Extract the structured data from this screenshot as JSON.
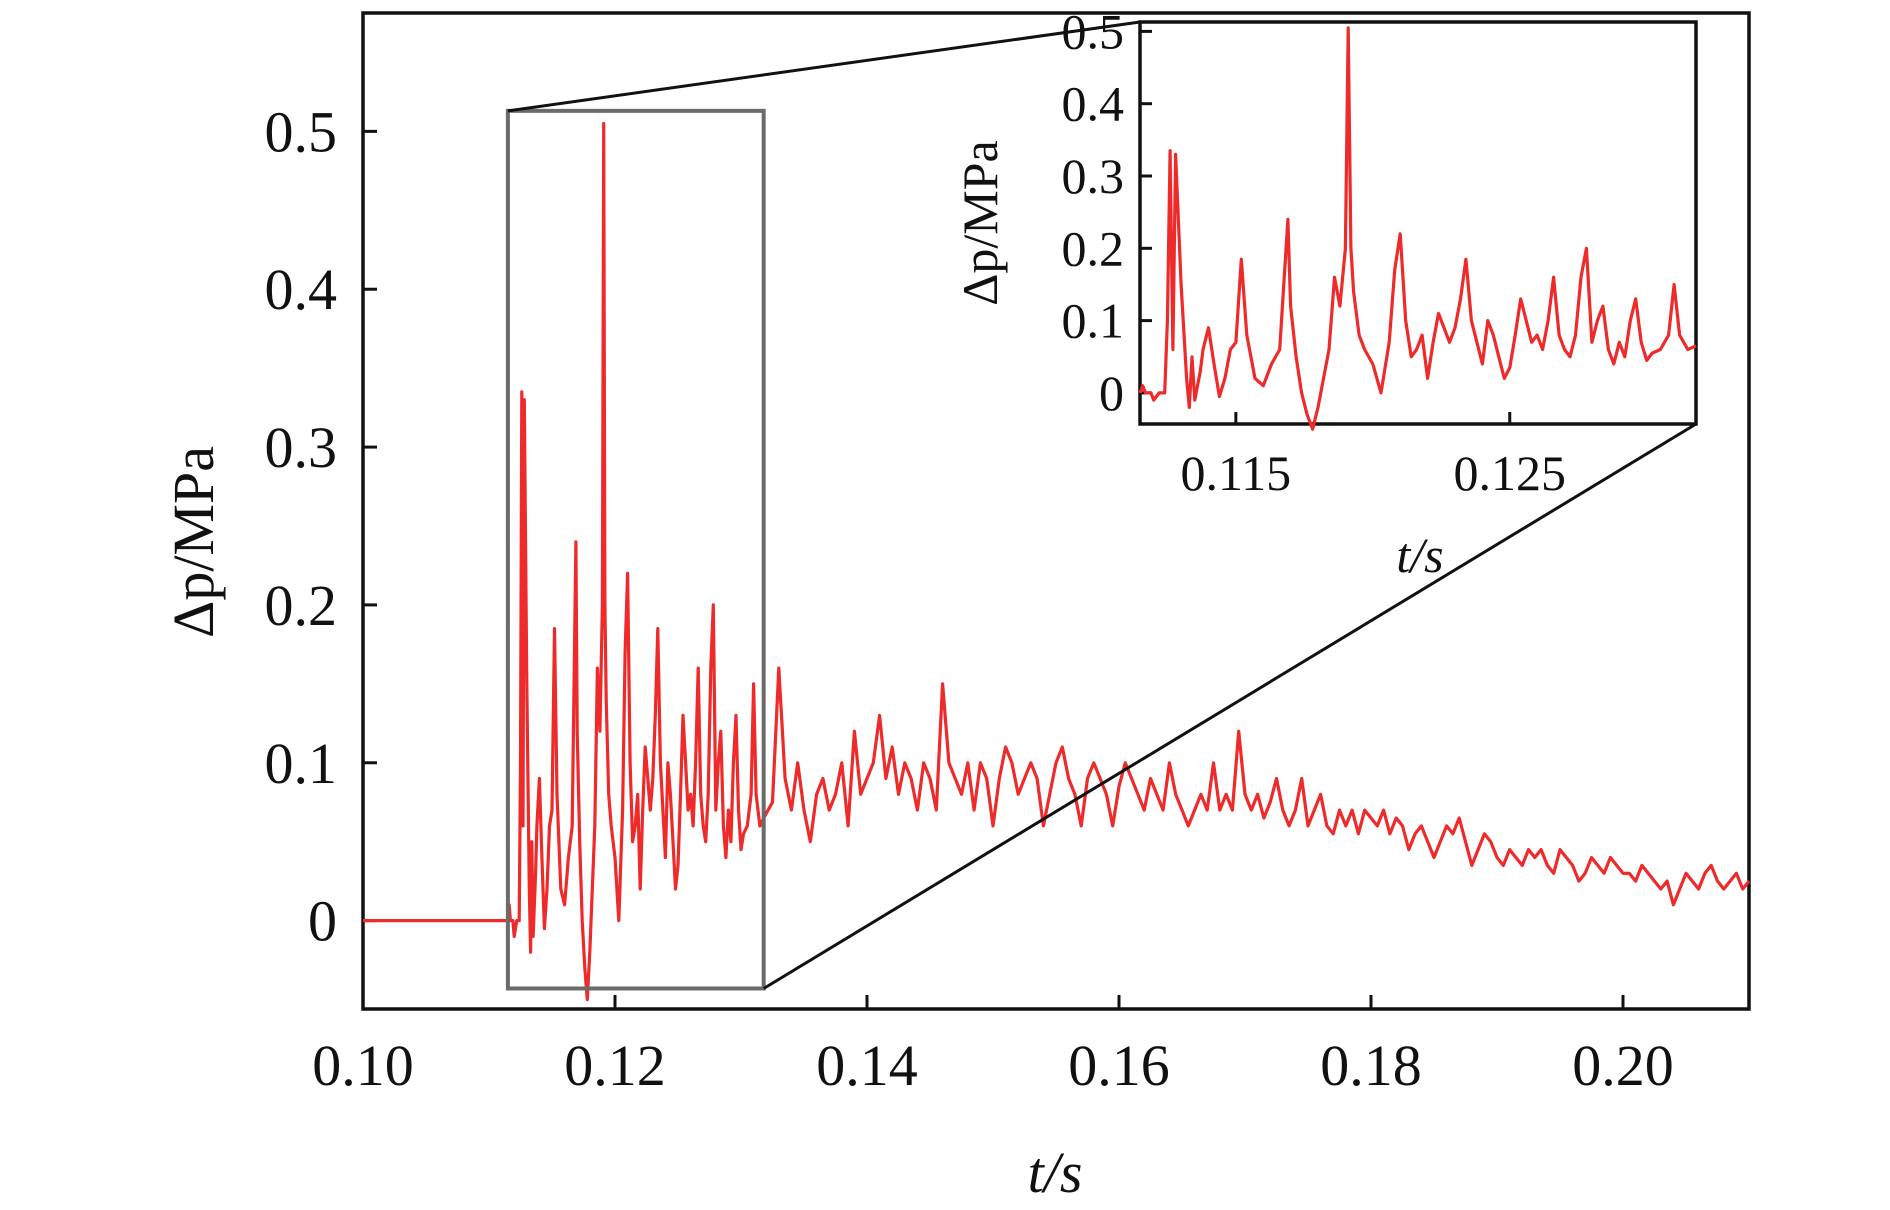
{
  "chart_data": [
    {
      "type": "line",
      "xlabel": "t/s",
      "ylabel": "Δp/MPa",
      "xlim": [
        0.1,
        0.21
      ],
      "ylim": [
        -0.056,
        0.575
      ],
      "x_ticks": [
        0.1,
        0.12,
        0.14,
        0.16,
        0.18,
        0.2
      ],
      "x_tick_labels": [
        "0.10",
        "0.12",
        "0.14",
        "0.16",
        "0.18",
        "0.20"
      ],
      "y_ticks": [
        0,
        0.1,
        0.2,
        0.3,
        0.4,
        0.5
      ],
      "y_tick_labels": [
        "0",
        "0.1",
        "0.2",
        "0.3",
        "0.4",
        "0.5"
      ],
      "line_color": "#ee2a2a",
      "zoom_region": {
        "x": [
          0.1115,
          0.1318
        ],
        "y": [
          -0.043,
          0.513
        ]
      },
      "series": [
        {
          "x": [
            0.1,
            0.1115,
            0.1116,
            0.1117,
            0.1119,
            0.112,
            0.1122,
            0.1124,
            0.1125,
            0.1126,
            0.1127,
            0.1128,
            0.113,
            0.1132,
            0.1133,
            0.1134,
            0.1135,
            0.1137,
            0.1138,
            0.114,
            0.1142,
            0.1144,
            0.1146,
            0.1148,
            0.115,
            0.1152,
            0.1154,
            0.1157,
            0.116,
            0.1163,
            0.1166,
            0.1169,
            0.117,
            0.1172,
            0.1174,
            0.1176,
            0.1178,
            0.118,
            0.1182,
            0.1184,
            0.1186,
            0.1188,
            0.119,
            0.1191,
            0.1192,
            0.1193,
            0.1195,
            0.1197,
            0.12,
            0.1203,
            0.1206,
            0.1208,
            0.121,
            0.1212,
            0.1214,
            0.1216,
            0.1218,
            0.122,
            0.1222,
            0.1224,
            0.1226,
            0.1228,
            0.123,
            0.1232,
            0.1234,
            0.1236,
            0.1238,
            0.124,
            0.1242,
            0.1244,
            0.1246,
            0.1248,
            0.125,
            0.1252,
            0.1254,
            0.1256,
            0.1258,
            0.126,
            0.1262,
            0.1264,
            0.1266,
            0.1268,
            0.127,
            0.1272,
            0.1274,
            0.1276,
            0.1278,
            0.128,
            0.1282,
            0.1284,
            0.1286,
            0.1288,
            0.129,
            0.1292,
            0.1294,
            0.1296,
            0.1298,
            0.13,
            0.1302,
            0.1305,
            0.1308,
            0.131,
            0.1312,
            0.1315,
            0.1318,
            0.1325,
            0.133,
            0.1335,
            0.134,
            0.1345,
            0.135,
            0.1355,
            0.136,
            0.1365,
            0.137,
            0.1375,
            0.138,
            0.1385,
            0.139,
            0.1395,
            0.14,
            0.1405,
            0.141,
            0.1415,
            0.142,
            0.1425,
            0.143,
            0.1435,
            0.144,
            0.1445,
            0.145,
            0.1455,
            0.146,
            0.1465,
            0.147,
            0.1475,
            0.148,
            0.1485,
            0.149,
            0.1495,
            0.15,
            0.1505,
            0.151,
            0.1515,
            0.152,
            0.1525,
            0.153,
            0.1535,
            0.154,
            0.1545,
            0.155,
            0.1555,
            0.156,
            0.1565,
            0.157,
            0.1575,
            0.158,
            0.1585,
            0.159,
            0.1595,
            0.16,
            0.1605,
            0.161,
            0.1615,
            0.162,
            0.1625,
            0.163,
            0.1635,
            0.164,
            0.1645,
            0.165,
            0.1655,
            0.166,
            0.1665,
            0.167,
            0.1675,
            0.168,
            0.1685,
            0.169,
            0.1695,
            0.17,
            0.1705,
            0.171,
            0.1715,
            0.172,
            0.1725,
            0.173,
            0.1735,
            0.174,
            0.1745,
            0.175,
            0.1755,
            0.176,
            0.1765,
            0.177,
            0.1775,
            0.178,
            0.1785,
            0.179,
            0.1795,
            0.18,
            0.1805,
            0.181,
            0.1815,
            0.182,
            0.1825,
            0.183,
            0.1835,
            0.184,
            0.1845,
            0.185,
            0.1855,
            0.186,
            0.1865,
            0.187,
            0.1875,
            0.188,
            0.1885,
            0.189,
            0.1895,
            0.19,
            0.1905,
            0.191,
            0.1915,
            0.192,
            0.1925,
            0.193,
            0.1935,
            0.194,
            0.1945,
            0.195,
            0.1955,
            0.196,
            0.1965,
            0.197,
            0.1975,
            0.198,
            0.1985,
            0.199,
            0.1995,
            0.2,
            0.2005,
            0.201,
            0.2015,
            0.202,
            0.2025,
            0.203,
            0.2035,
            0.204,
            0.2045,
            0.205,
            0.2055,
            0.206,
            0.2065,
            0.207,
            0.2075,
            0.208,
            0.2085,
            0.209,
            0.2095,
            0.21
          ],
          "y": [
            0.0,
            0.0,
            0.01,
            0.0,
            0.0,
            -0.01,
            0.0,
            0.0,
            0.1,
            0.335,
            0.06,
            0.33,
            0.15,
            0.02,
            -0.02,
            0.05,
            -0.01,
            0.03,
            0.06,
            0.09,
            0.04,
            -0.005,
            0.02,
            0.06,
            0.07,
            0.185,
            0.08,
            0.02,
            0.01,
            0.04,
            0.06,
            0.24,
            0.12,
            0.05,
            0.0,
            -0.03,
            -0.05,
            -0.02,
            0.02,
            0.06,
            0.16,
            0.12,
            0.2,
            0.505,
            0.2,
            0.14,
            0.08,
            0.06,
            0.04,
            0.0,
            0.07,
            0.17,
            0.22,
            0.1,
            0.05,
            0.06,
            0.08,
            0.02,
            0.07,
            0.11,
            0.09,
            0.07,
            0.09,
            0.13,
            0.185,
            0.1,
            0.07,
            0.04,
            0.1,
            0.08,
            0.05,
            0.02,
            0.035,
            0.08,
            0.13,
            0.1,
            0.07,
            0.08,
            0.06,
            0.1,
            0.16,
            0.08,
            0.06,
            0.05,
            0.08,
            0.16,
            0.2,
            0.07,
            0.1,
            0.12,
            0.06,
            0.04,
            0.07,
            0.05,
            0.1,
            0.13,
            0.07,
            0.045,
            0.055,
            0.06,
            0.08,
            0.15,
            0.08,
            0.06,
            0.065,
            0.075,
            0.16,
            0.09,
            0.07,
            0.1,
            0.07,
            0.05,
            0.08,
            0.09,
            0.07,
            0.08,
            0.1,
            0.06,
            0.12,
            0.08,
            0.09,
            0.1,
            0.13,
            0.09,
            0.11,
            0.08,
            0.1,
            0.09,
            0.07,
            0.1,
            0.09,
            0.07,
            0.15,
            0.1,
            0.09,
            0.08,
            0.1,
            0.07,
            0.1,
            0.09,
            0.06,
            0.09,
            0.11,
            0.1,
            0.08,
            0.09,
            0.1,
            0.09,
            0.06,
            0.08,
            0.1,
            0.11,
            0.09,
            0.08,
            0.06,
            0.09,
            0.1,
            0.09,
            0.08,
            0.06,
            0.085,
            0.1,
            0.09,
            0.08,
            0.07,
            0.09,
            0.08,
            0.07,
            0.1,
            0.08,
            0.07,
            0.06,
            0.07,
            0.08,
            0.07,
            0.1,
            0.07,
            0.08,
            0.07,
            0.12,
            0.08,
            0.07,
            0.08,
            0.065,
            0.075,
            0.09,
            0.07,
            0.06,
            0.07,
            0.09,
            0.06,
            0.07,
            0.08,
            0.06,
            0.055,
            0.07,
            0.06,
            0.07,
            0.055,
            0.07,
            0.065,
            0.06,
            0.07,
            0.055,
            0.065,
            0.06,
            0.045,
            0.055,
            0.06,
            0.05,
            0.04,
            0.05,
            0.06,
            0.055,
            0.065,
            0.05,
            0.035,
            0.045,
            0.055,
            0.05,
            0.04,
            0.035,
            0.045,
            0.04,
            0.035,
            0.045,
            0.04,
            0.045,
            0.035,
            0.03,
            0.045,
            0.04,
            0.035,
            0.025,
            0.03,
            0.04,
            0.035,
            0.03,
            0.04,
            0.035,
            0.03,
            0.03,
            0.025,
            0.035,
            0.03,
            0.025,
            0.02,
            0.025,
            0.01,
            0.02,
            0.03,
            0.025,
            0.02,
            0.03,
            0.035,
            0.025,
            0.02,
            0.025,
            0.03,
            0.02,
            0.025
          ]
        }
      ]
    },
    {
      "type": "line",
      "xlabel": "t/s",
      "ylabel": "Δp/MPa",
      "xlim": [
        0.1115,
        0.1318
      ],
      "ylim": [
        -0.043,
        0.513
      ],
      "x_ticks": [
        0.115,
        0.125
      ],
      "x_tick_labels": [
        "0.115",
        "0.125"
      ],
      "y_ticks": [
        0,
        0.1,
        0.2,
        0.3,
        0.4,
        0.5
      ],
      "y_tick_labels": [
        "0",
        "0.1",
        "0.2",
        "0.3",
        "0.4",
        "0.5"
      ],
      "line_color": "#ee2a2a"
    }
  ]
}
